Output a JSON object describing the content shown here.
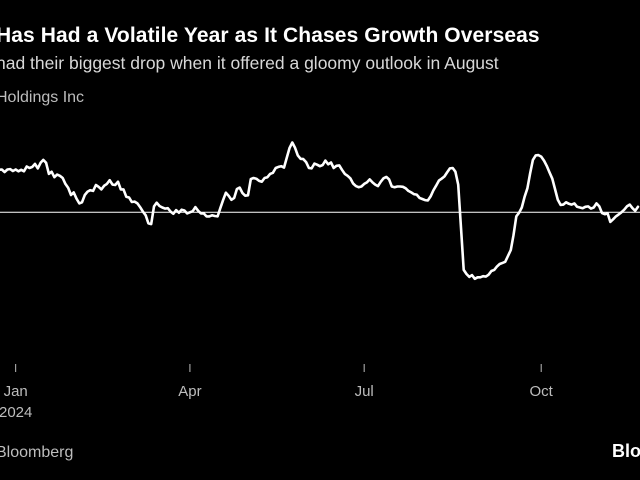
{
  "chart_data": {
    "type": "line",
    "title": "Has Had a Volatile Year as It Chases Growth Overseas",
    "subtitle": "had their biggest drop when it offered a gloomy outlook in August",
    "series_label": "Holdings Inc",
    "source": "Bloomberg",
    "brand": "Bloo",
    "xlabel": "",
    "ylabel": "",
    "x_ticks": [
      {
        "label": "Jan",
        "year": "2024",
        "index": 10
      },
      {
        "label": "Apr",
        "year": "",
        "index": 73
      },
      {
        "label": "Jul",
        "year": "",
        "index": 136
      },
      {
        "label": "Oct",
        "year": "",
        "index": 200
      }
    ],
    "baseline_value": 100,
    "ylim": [
      60,
      125
    ],
    "grid": false,
    "series": [
      {
        "name": "Holdings Inc",
        "color": "#ffffff",
        "values": [
          112.3,
          113.4,
          112.3,
          113.6,
          111.5,
          111.6,
          110.9,
          111.6,
          111.7,
          111.2,
          111.6,
          111.1,
          111.5,
          111.1,
          112.4,
          112.0,
          112.3,
          113.1,
          111.9,
          113.4,
          114.2,
          113.4,
          110.4,
          111.0,
          109.5,
          110.2,
          109.9,
          109.3,
          107.7,
          106.6,
          104.7,
          105.4,
          103.7,
          102.4,
          102.7,
          104.7,
          105.6,
          106.0,
          105.8,
          107.4,
          106.9,
          106.2,
          107.2,
          107.7,
          108.7,
          107.5,
          107.4,
          108.3,
          106.2,
          106.2,
          104.2,
          104.0,
          102.8,
          102.9,
          102.4,
          101.4,
          100.2,
          99.2,
          97.0,
          96.8,
          101.6,
          102.6,
          101.7,
          101.3,
          101.0,
          101.1,
          100.2,
          99.6,
          100.6,
          99.9,
          100.7,
          100.5,
          99.7,
          100.0,
          100.3,
          101.4,
          100.4,
          99.7,
          99.7,
          98.9,
          98.9,
          99.2,
          99.0,
          98.9,
          101.1,
          103.3,
          105.3,
          104.5,
          103.4,
          103.9,
          106.3,
          106.7,
          105.2,
          104.5,
          104.6,
          109.0,
          109.3,
          109.1,
          108.5,
          108.3,
          109.3,
          109.5,
          110.4,
          110.7,
          112.0,
          112.3,
          112.5,
          112.1,
          114.7,
          117.4,
          118.9,
          117.5,
          115.4,
          114.5,
          114.4,
          113.6,
          112.0,
          111.9,
          113.2,
          112.9,
          112.5,
          112.8,
          114.0,
          113.0,
          113.5,
          112.0,
          112.6,
          112.7,
          111.5,
          110.4,
          109.9,
          109.2,
          107.8,
          107.1,
          106.8,
          107.0,
          107.7,
          108.1,
          108.9,
          108.1,
          107.5,
          107.1,
          108.3,
          109.2,
          109.6,
          108.9,
          107.0,
          106.8,
          107.0,
          107.0,
          106.9,
          106.5,
          105.8,
          105.4,
          104.9,
          104.8,
          103.9,
          103.6,
          103.3,
          103.2,
          104.3,
          105.9,
          107.2,
          108.6,
          109.1,
          109.7,
          110.8,
          111.9,
          112.0,
          111.0,
          107.5,
          95.8,
          84.4,
          83.3,
          82.5,
          83.0,
          82.0,
          82.4,
          82.4,
          82.7,
          82.6,
          83.1,
          84.1,
          84.4,
          85.3,
          86.0,
          86.3,
          86.6,
          88.2,
          89.8,
          93.8,
          98.9,
          99.9,
          101.3,
          104.2,
          106.5,
          110.5,
          114.2,
          115.4,
          115.5,
          115.1,
          114.0,
          112.6,
          110.8,
          109.1,
          106.3,
          103.4,
          102.0,
          102.1,
          102.7,
          102.3,
          102.1,
          102.4,
          101.5,
          101.3,
          101.1,
          101.5,
          101.6,
          101.0,
          101.3,
          102.4,
          101.6,
          99.8,
          99.5,
          99.7,
          97.4,
          98.1,
          98.9,
          99.4,
          100.0,
          100.7,
          101.6,
          102.1,
          101.1,
          100.4,
          101.5
        ]
      }
    ]
  }
}
